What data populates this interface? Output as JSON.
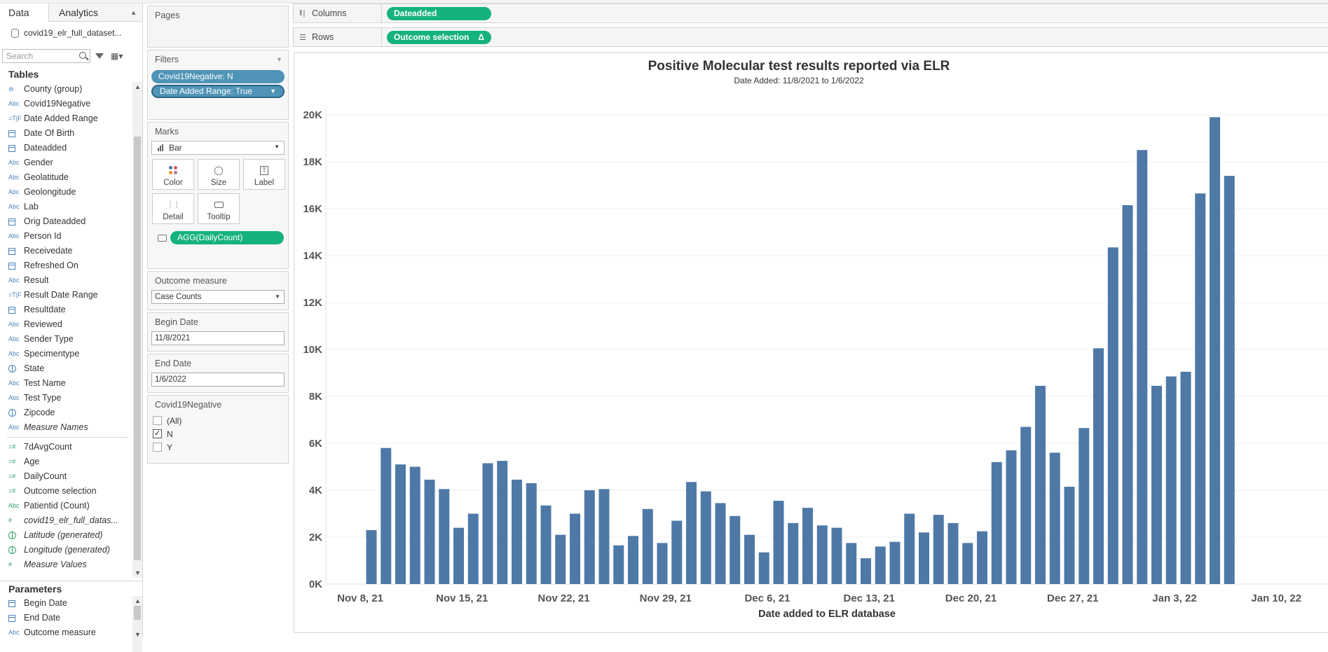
{
  "data_pane": {
    "tabs": [
      {
        "label": "Data"
      },
      {
        "label": "Analytics"
      }
    ],
    "datasource": "covid19_elr_full_dataset...",
    "search_placeholder": "Search",
    "tables_header": "Tables",
    "dimensions": [
      {
        "label": "County (group)",
        "icon": "group-icon",
        "tag": "⊜"
      },
      {
        "label": "Covid19Negative",
        "icon": "abc-icon",
        "tag": "Abc"
      },
      {
        "label": "Date Added Range",
        "icon": "boolean-icon",
        "tag": "=T|F"
      },
      {
        "label": "Date Of Birth",
        "icon": "calendar-icon",
        "tag": "cal"
      },
      {
        "label": "Dateadded",
        "icon": "calendar-icon",
        "tag": "cal"
      },
      {
        "label": "Gender",
        "icon": "abc-icon",
        "tag": "Abc"
      },
      {
        "label": "Geolatitude",
        "icon": "abc-icon",
        "tag": "Abc"
      },
      {
        "label": "Geolongitude",
        "icon": "abc-icon",
        "tag": "Abc"
      },
      {
        "label": "Lab",
        "icon": "abc-icon",
        "tag": "Abc"
      },
      {
        "label": "Orig Dateadded",
        "icon": "calendar-icon",
        "tag": "cal"
      },
      {
        "label": "Person Id",
        "icon": "abc-icon",
        "tag": "Abc"
      },
      {
        "label": "Receivedate",
        "icon": "calendar-icon",
        "tag": "cal"
      },
      {
        "label": "Refreshed On",
        "icon": "calendar-clock-icon",
        "tag": "cal"
      },
      {
        "label": "Result",
        "icon": "abc-icon",
        "tag": "Abc"
      },
      {
        "label": "Result Date Range",
        "icon": "boolean-icon",
        "tag": "=T|F"
      },
      {
        "label": "Resultdate",
        "icon": "calendar-icon",
        "tag": "cal"
      },
      {
        "label": "Reviewed",
        "icon": "abc-icon",
        "tag": "Abc"
      },
      {
        "label": "Sender Type",
        "icon": "abc-icon",
        "tag": "Abc"
      },
      {
        "label": "Specimentype",
        "icon": "abc-icon",
        "tag": "Abc"
      },
      {
        "label": "State",
        "icon": "globe-icon",
        "tag": "globe"
      },
      {
        "label": "Test Name",
        "icon": "abc-icon",
        "tag": "Abc"
      },
      {
        "label": "Test Type",
        "icon": "abc-icon",
        "tag": "Abc"
      },
      {
        "label": "Zipcode",
        "icon": "globe-icon",
        "tag": "globe"
      },
      {
        "label": "Measure Names",
        "icon": "abc-icon",
        "tag": "Abc",
        "italic": true
      }
    ],
    "measures": [
      {
        "label": "7dAvgCount",
        "icon": "calc-number-icon",
        "tag": "=#"
      },
      {
        "label": "Age",
        "icon": "calc-number-icon",
        "tag": "=#"
      },
      {
        "label": "DailyCount",
        "icon": "calc-number-icon",
        "tag": "=#"
      },
      {
        "label": "Outcome selection",
        "icon": "calc-number-icon",
        "tag": "=#"
      },
      {
        "label": "Patientid (Count)",
        "icon": "abc-icon",
        "tag": "Abc"
      },
      {
        "label": "covid19_elr_full_datas...",
        "icon": "number-icon",
        "tag": "#",
        "italic": true
      },
      {
        "label": "Latitude (generated)",
        "icon": "globe-icon",
        "tag": "globe",
        "italic": true
      },
      {
        "label": "Longitude (generated)",
        "icon": "globe-icon",
        "tag": "globe",
        "italic": true
      },
      {
        "label": "Measure Values",
        "icon": "number-icon",
        "tag": "#",
        "italic": true
      }
    ],
    "parameters_header": "Parameters",
    "parameters": [
      {
        "label": "Begin Date",
        "icon": "calendar-icon",
        "tag": "cal"
      },
      {
        "label": "End Date",
        "icon": "calendar-icon",
        "tag": "cal"
      },
      {
        "label": "Outcome measure",
        "icon": "abc-icon",
        "tag": "Abc"
      }
    ]
  },
  "pages": {
    "title": "Pages"
  },
  "filters": {
    "title": "Filters",
    "pills": [
      "Covid19Negative: N",
      "Date Added Range: True"
    ]
  },
  "marks": {
    "title": "Marks",
    "type": "Bar",
    "buttons": [
      "Color",
      "Size",
      "Label",
      "Detail",
      "Tooltip"
    ],
    "tooltip_pill": "AGG(DailyCount)"
  },
  "outcome_measure": {
    "title": "Outcome measure",
    "value": "Case Counts"
  },
  "begin_date": {
    "title": "Begin Date",
    "value": "11/8/2021"
  },
  "end_date": {
    "title": "End Date",
    "value": "1/6/2022"
  },
  "covid_filter": {
    "title": "Covid19Negative",
    "options": [
      {
        "label": "(All)",
        "checked": false
      },
      {
        "label": "N",
        "checked": true
      },
      {
        "label": "Y",
        "checked": false
      }
    ]
  },
  "shelves": {
    "columns_label": "Columns",
    "columns_pill": "Dateadded",
    "rows_label": "Rows",
    "rows_pill": "Outcome selection",
    "rows_pill_mark": "Δ"
  },
  "chart_data": {
    "type": "bar",
    "title": "Positive Molecular test results reported via ELR",
    "subtitle": "Date Added:  11/8/2021 to 1/6/2022",
    "xlabel": "Date added to ELR database",
    "ylabel": "",
    "color": "#4e79a7",
    "ylim": [
      0,
      20000
    ],
    "yticks": [
      "0K",
      "2K",
      "4K",
      "6K",
      "8K",
      "10K",
      "12K",
      "14K",
      "16K",
      "18K",
      "20K"
    ],
    "xticks": [
      "Nov 8, 21",
      "Nov 15, 21",
      "Nov 22, 21",
      "Nov 29, 21",
      "Dec 6, 21",
      "Dec 13, 21",
      "Dec 20, 21",
      "Dec 27, 21",
      "Jan 3, 22",
      "Jan 10, 22"
    ],
    "x_start": "2021-11-08",
    "x": [
      "2021-11-08",
      "2021-11-09",
      "2021-11-10",
      "2021-11-11",
      "2021-11-12",
      "2021-11-13",
      "2021-11-14",
      "2021-11-15",
      "2021-11-16",
      "2021-11-17",
      "2021-11-18",
      "2021-11-19",
      "2021-11-20",
      "2021-11-21",
      "2021-11-22",
      "2021-11-23",
      "2021-11-24",
      "2021-11-25",
      "2021-11-26",
      "2021-11-27",
      "2021-11-28",
      "2021-11-29",
      "2021-11-30",
      "2021-12-01",
      "2021-12-02",
      "2021-12-03",
      "2021-12-04",
      "2021-12-05",
      "2021-12-06",
      "2021-12-07",
      "2021-12-08",
      "2021-12-09",
      "2021-12-10",
      "2021-12-11",
      "2021-12-12",
      "2021-12-13",
      "2021-12-14",
      "2021-12-15",
      "2021-12-16",
      "2021-12-17",
      "2021-12-18",
      "2021-12-19",
      "2021-12-20",
      "2021-12-21",
      "2021-12-22",
      "2021-12-23",
      "2021-12-24",
      "2021-12-25",
      "2021-12-26",
      "2021-12-27",
      "2021-12-28",
      "2021-12-29",
      "2021-12-30",
      "2021-12-31",
      "2022-01-01",
      "2022-01-02",
      "2022-01-03",
      "2022-01-04",
      "2022-01-05",
      "2022-01-06"
    ],
    "values": [
      2300,
      5800,
      5100,
      5000,
      4450,
      4050,
      2400,
      3000,
      5150,
      5250,
      4450,
      4300,
      3350,
      2100,
      3000,
      4000,
      4050,
      1650,
      2050,
      3200,
      1750,
      2700,
      4350,
      3950,
      3450,
      2900,
      2100,
      1350,
      3550,
      2600,
      3250,
      2500,
      2400,
      1750,
      1100,
      1600,
      1800,
      3000,
      2200,
      2950,
      2600,
      1750,
      2250,
      5200,
      5700,
      6700,
      8450,
      5600,
      4150,
      6650,
      10050,
      14350,
      16150,
      18500,
      8450,
      8850,
      9050,
      16650,
      19900,
      17400
    ]
  }
}
